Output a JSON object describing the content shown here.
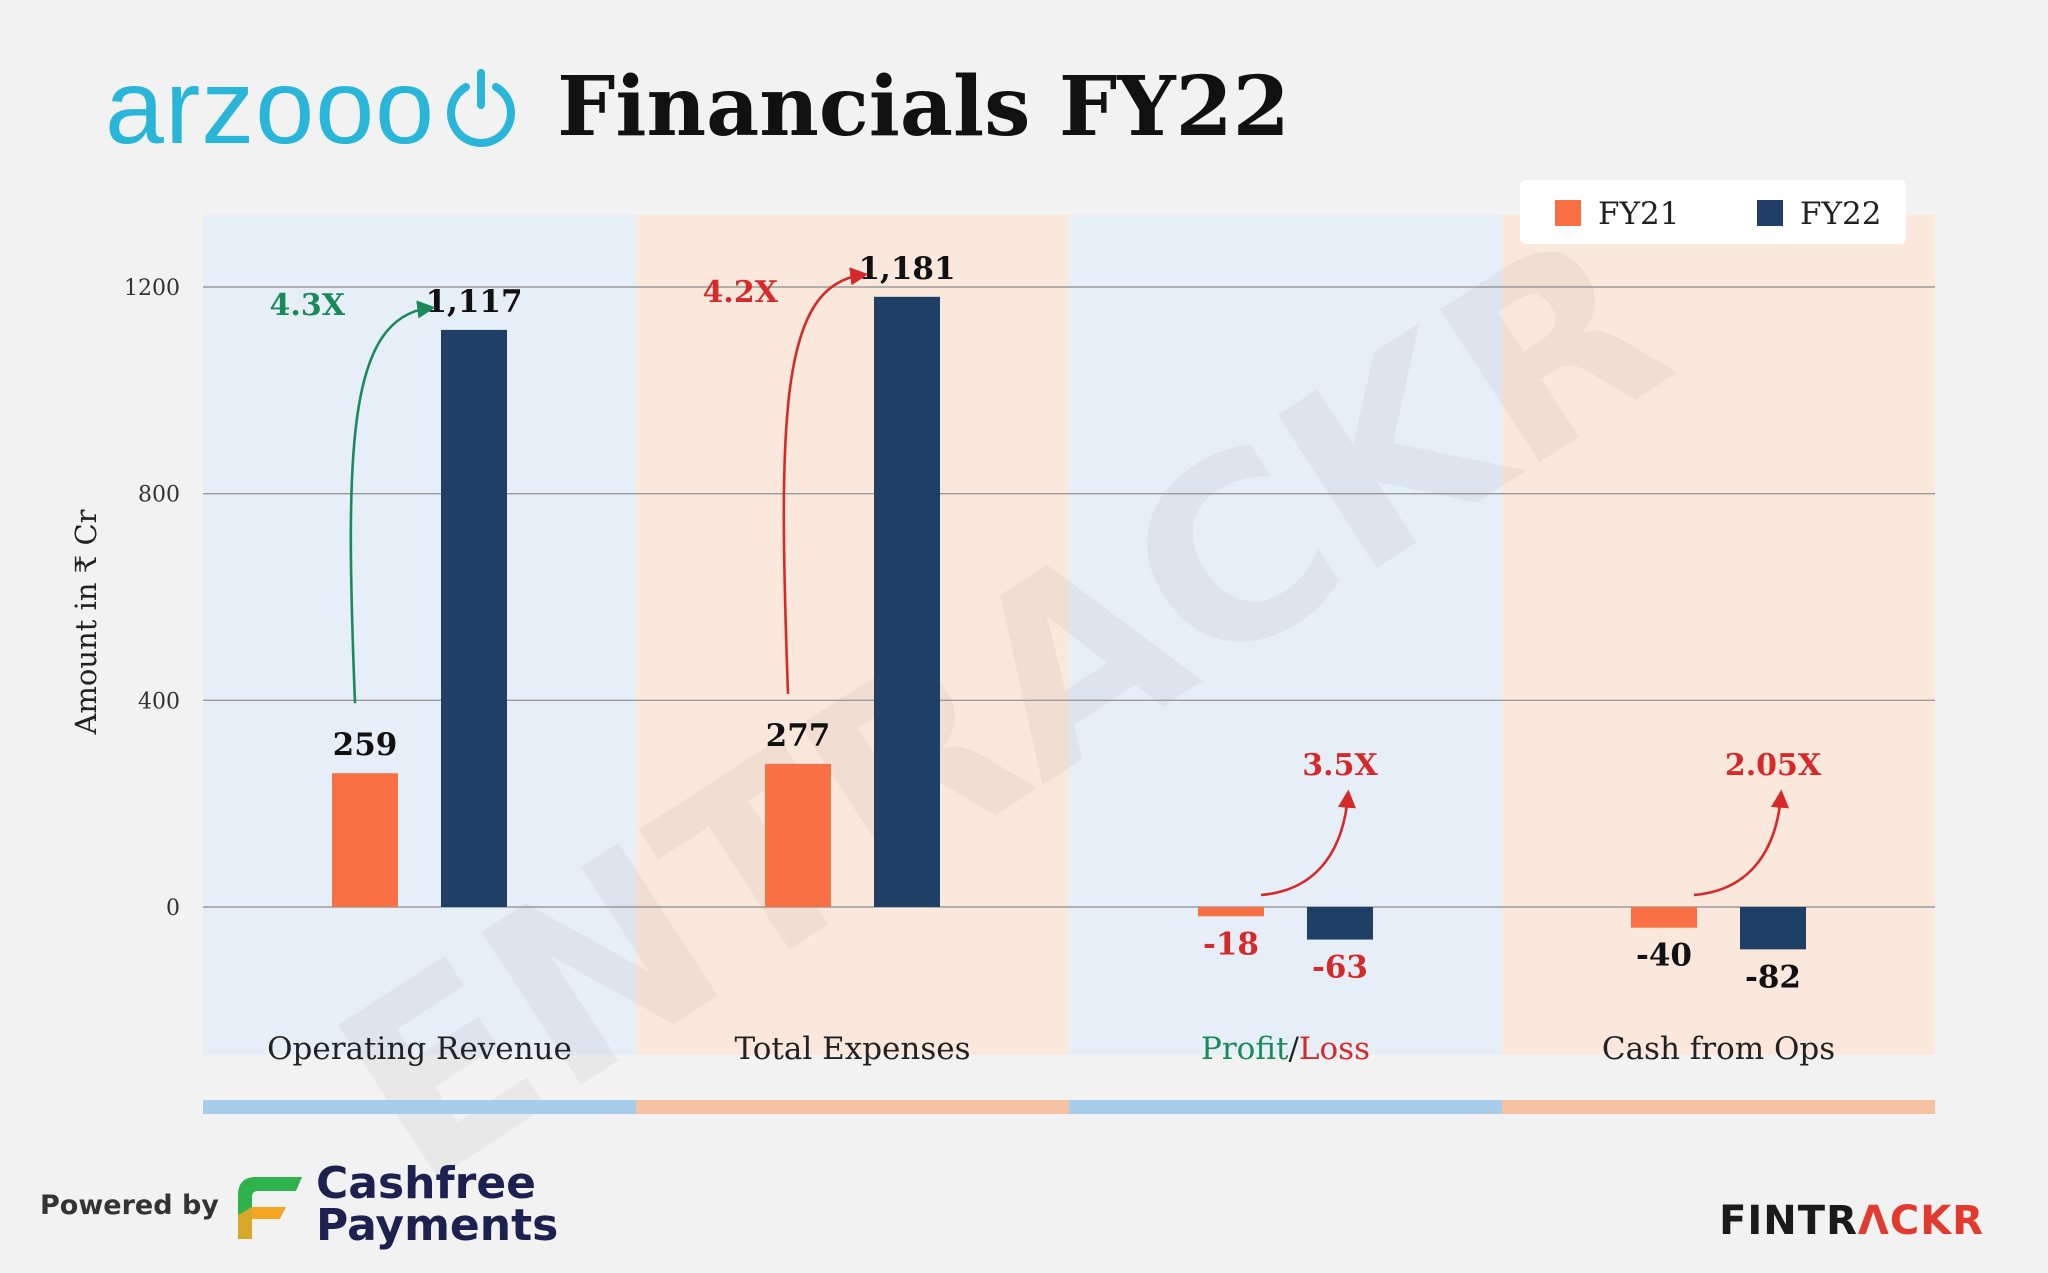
{
  "header": {
    "brand": "arzooo",
    "title": "Financials FY22"
  },
  "legend": {
    "items": [
      {
        "label": "FY21",
        "color": "#f97044"
      },
      {
        "label": "FY22",
        "color": "#1f3f66"
      }
    ]
  },
  "chart_data": {
    "type": "bar",
    "ylabel": "Amount in ₹ Cr",
    "ylim": [
      -150,
      1350
    ],
    "yticks": [
      0,
      400,
      800,
      1200
    ],
    "grid": true,
    "legend_position": "top-right",
    "categories": [
      "Operating Revenue",
      "Total Expenses",
      "Profit/Loss",
      "Cash from Ops"
    ],
    "series": [
      {
        "name": "FY21",
        "color": "#f97044",
        "values": [
          259,
          277,
          -18,
          -40
        ],
        "labels": [
          "259",
          "277",
          "-18",
          "-40"
        ]
      },
      {
        "name": "FY22",
        "color": "#1f3f66",
        "values": [
          1117,
          1181,
          -63,
          -82
        ],
        "labels": [
          "1,117",
          "1,181",
          "-63",
          "-82"
        ]
      }
    ],
    "annotations": [
      {
        "text": "4.3X",
        "color": "#1a8a5a"
      },
      {
        "text": "4.2X",
        "color": "#d62a2a"
      },
      {
        "text": "3.5X",
        "color": "#d62a2a"
      },
      {
        "text": "2.05X",
        "color": "#d62a2a"
      }
    ],
    "category_label_parts": [
      [
        {
          "text": "Operating Revenue",
          "color": "#222222"
        }
      ],
      [
        {
          "text": "Total Expenses",
          "color": "#222222"
        }
      ],
      [
        {
          "text": "Profit",
          "color": "#1a8a5a"
        },
        {
          "text": "/",
          "color": "#222222"
        },
        {
          "text": "Loss",
          "color": "#d62a2a"
        }
      ],
      [
        {
          "text": "Cash from Ops",
          "color": "#222222"
        }
      ]
    ],
    "panel_colors": [
      "#e6eef8",
      "#fbe8dc",
      "#e6eef8",
      "#fbe8dc"
    ],
    "strip_colors": [
      "#a8cdea",
      "#f5c3a2",
      "#a8cdea",
      "#f5c3a2"
    ],
    "negative_label_color": "#d62a2a"
  },
  "watermark": "ENTRACKR",
  "footer": {
    "powered_by": "Powered by",
    "partner_line1": "Cashfree",
    "partner_line2": "Payments",
    "brand_part1": "FINTR",
    "brand_part2": "Λ",
    "brand_part3": "CKR",
    "brand_color_dark": "#1a1a1a",
    "brand_color_accent": "#e23a2e"
  }
}
